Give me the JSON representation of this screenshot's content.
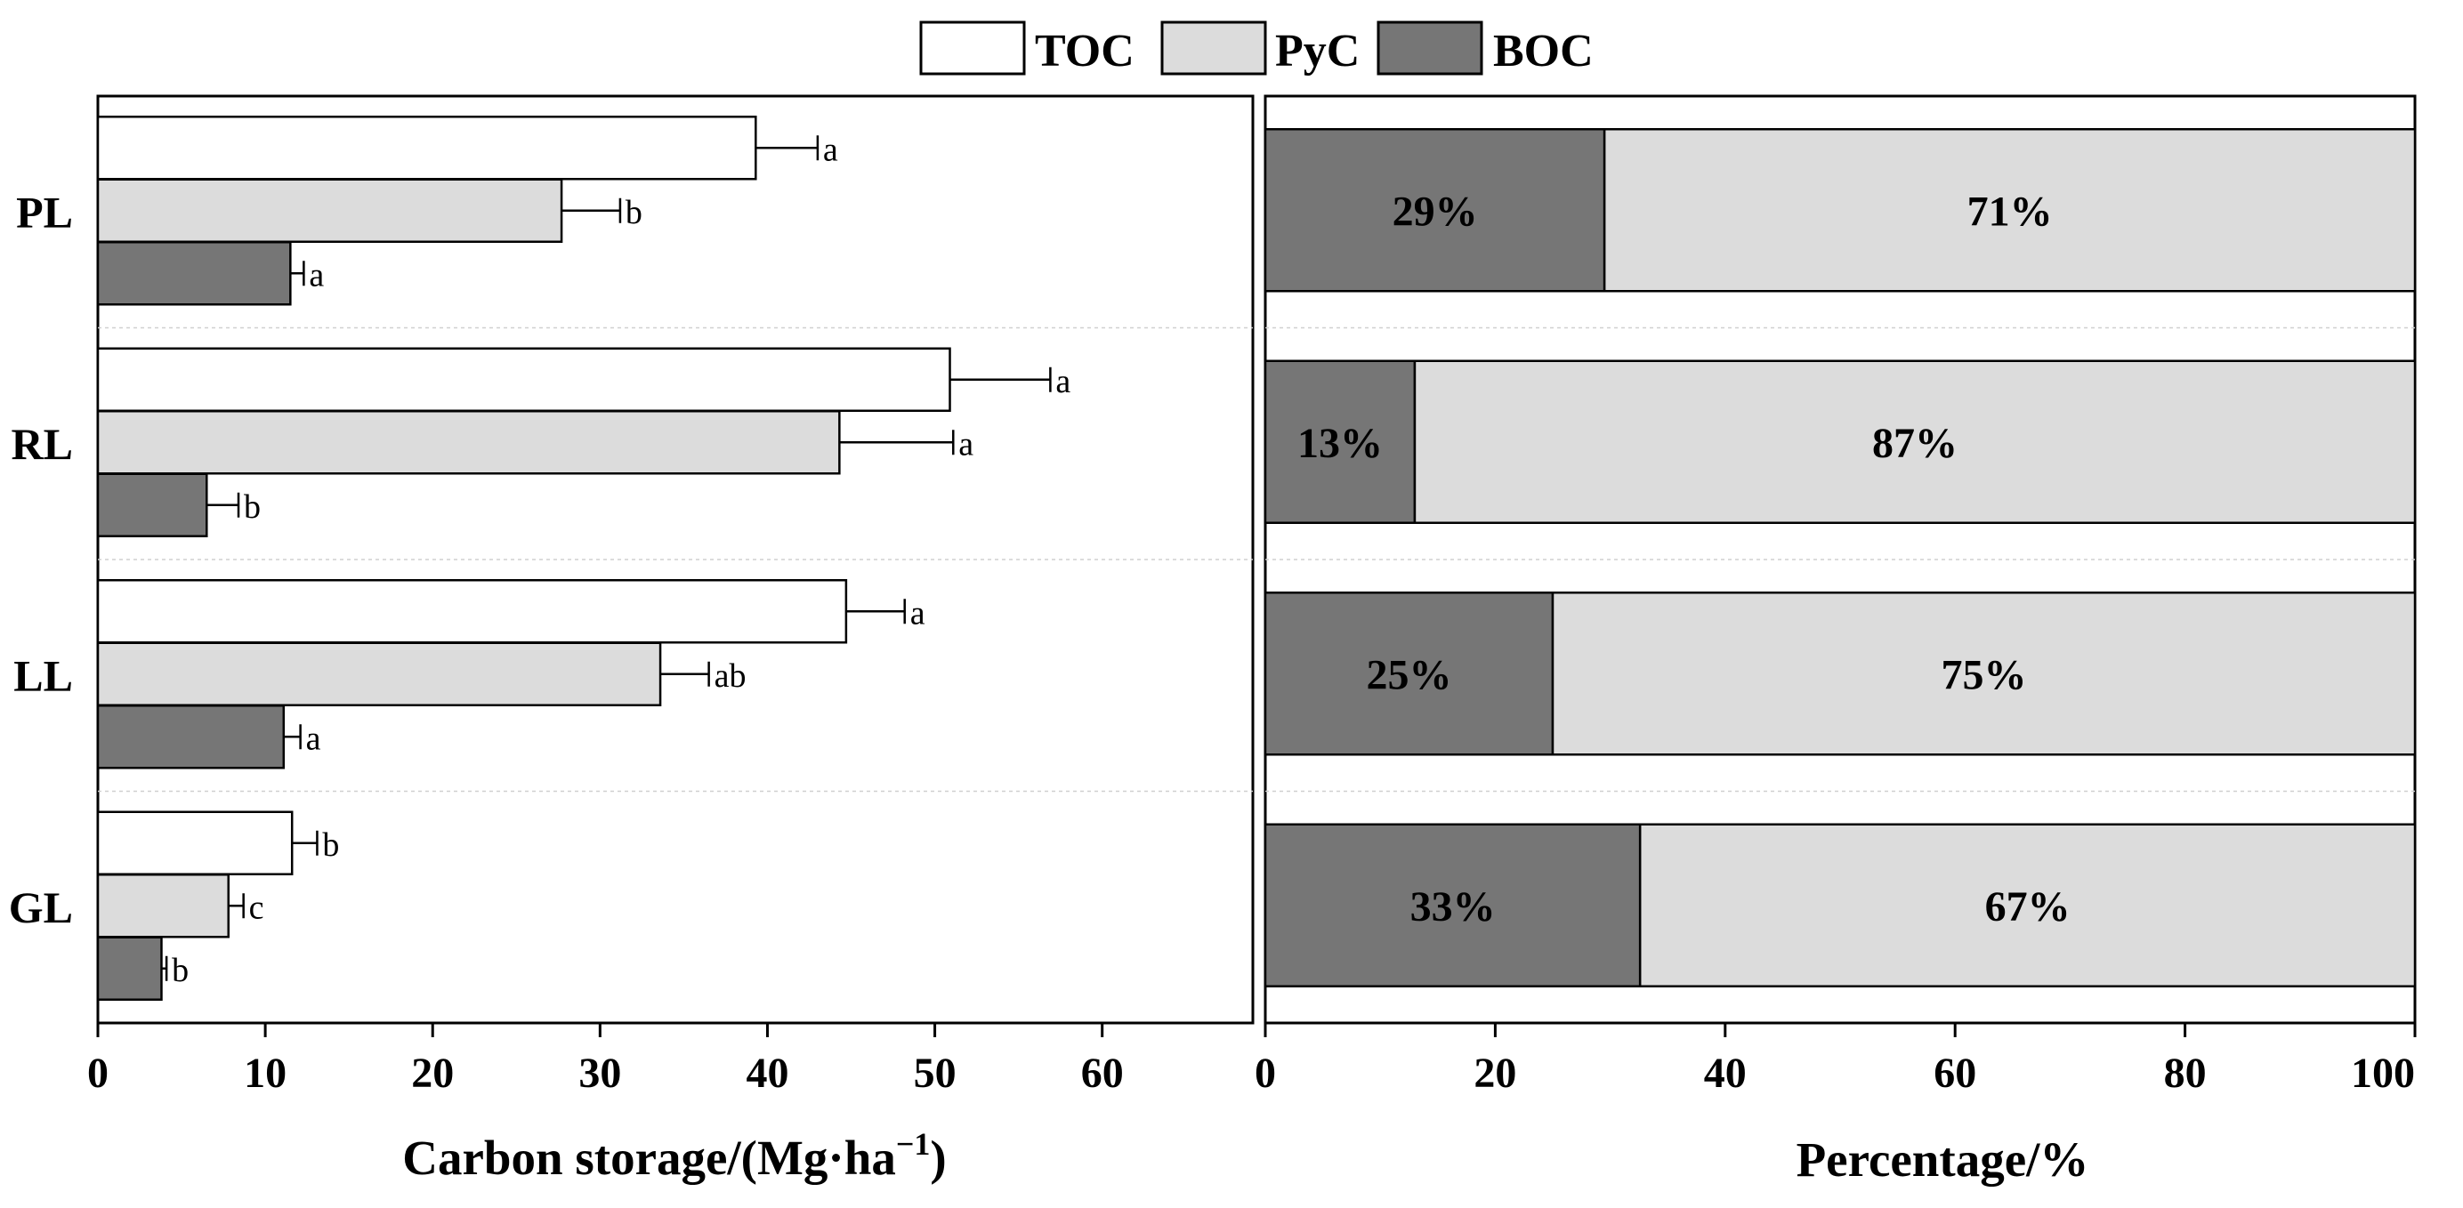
{
  "chart_data": [
    {
      "type": "bar",
      "orientation": "horizontal",
      "categories": [
        "PL",
        "RL",
        "LL",
        "GL"
      ],
      "series": [
        {
          "name": "TOC",
          "values": [
            39.3,
            50.9,
            44.7,
            11.6
          ],
          "errors": [
            3.7,
            6.0,
            3.5,
            1.5
          ],
          "letters": [
            "a",
            "a",
            "a",
            "b"
          ]
        },
        {
          "name": "PyC",
          "values": [
            27.7,
            44.3,
            33.6,
            7.8
          ],
          "errors": [
            3.5,
            6.8,
            2.9,
            0.9
          ],
          "letters": [
            "b",
            "a",
            "ab",
            "c"
          ]
        },
        {
          "name": "BOC",
          "values": [
            11.5,
            6.5,
            11.1,
            3.8
          ],
          "errors": [
            0.8,
            1.9,
            1.0,
            0.3
          ],
          "letters": [
            "a",
            "b",
            "a",
            "b"
          ]
        }
      ],
      "xlabel": "Carbon storage/(Mg·ha",
      "xlabel_sup": "−1",
      "xlabel_end": ")",
      "xlim": [
        0,
        69
      ],
      "xticks": [
        0,
        10,
        20,
        30,
        40,
        50,
        60
      ]
    },
    {
      "type": "bar",
      "orientation": "horizontal",
      "stacked": true,
      "categories": [
        "PL",
        "RL",
        "LL",
        "GL"
      ],
      "series": [
        {
          "name": "BOC",
          "values": [
            29.5,
            13,
            25,
            32.6
          ],
          "labels": [
            "29%",
            "13%",
            "25%",
            "33%"
          ]
        },
        {
          "name": "PyC",
          "values": [
            70.5,
            87,
            75,
            67.4
          ],
          "labels": [
            "71%",
            "87%",
            "75%",
            "67%"
          ]
        }
      ],
      "xlabel": "Percentage/%",
      "xlim": [
        0,
        100
      ],
      "xticks": [
        0,
        20,
        40,
        60,
        80,
        100
      ]
    }
  ],
  "legend": [
    {
      "name": "TOC",
      "color": "#ffffff"
    },
    {
      "name": "PyC",
      "color": "#dcdcdc"
    },
    {
      "name": "BOC",
      "color": "#767676"
    }
  ],
  "colors": {
    "TOC": "#ffffff",
    "PyC": "#dcdcdc",
    "BOC": "#767676",
    "axis": "#000000"
  }
}
